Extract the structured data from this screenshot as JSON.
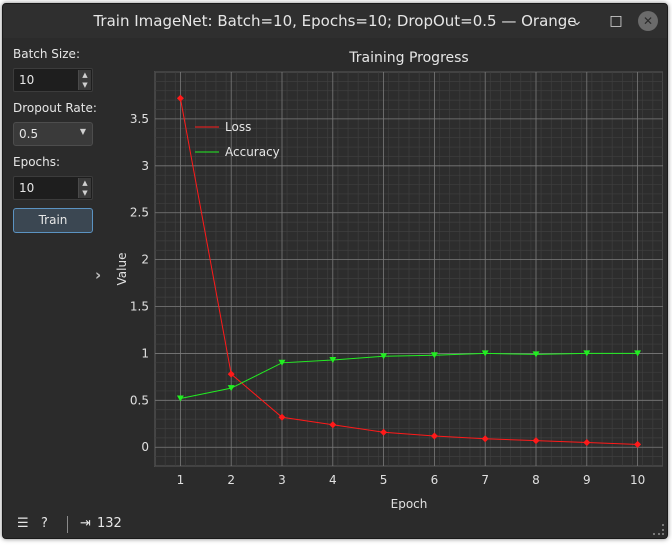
{
  "window": {
    "title": "Train ImageNet: Batch=10, Epochs=10; DropOut=0.5 — Orange"
  },
  "controls": {
    "batch_size_label": "Batch Size:",
    "batch_size_value": "10",
    "dropout_label": "Dropout Rate:",
    "dropout_value": "0.5",
    "epochs_label": "Epochs:",
    "epochs_value": "10",
    "train_button": "Train"
  },
  "statusbar": {
    "count": "132"
  },
  "icons": {
    "minimize": "minimize-icon",
    "maximize": "maximize-icon",
    "close": "close-icon",
    "menu": "hamburger-menu-icon",
    "help": "help-icon",
    "output": "output-icon",
    "toggle": "chevron-right-icon"
  },
  "colors": {
    "loss": "#ff1a1a",
    "accuracy": "#22ee22",
    "accent": "#5b93c2"
  },
  "chart_data": {
    "type": "line",
    "title": "Training Progress",
    "xlabel": "Epoch",
    "ylabel": "Value",
    "x": [
      1,
      2,
      3,
      4,
      5,
      6,
      7,
      8,
      9,
      10
    ],
    "xlim": [
      0.5,
      10.5
    ],
    "ylim": [
      -0.2,
      4.0
    ],
    "yticks": [
      0,
      0.5,
      1,
      1.5,
      2,
      2.5,
      3,
      3.5
    ],
    "xticks": [
      1,
      2,
      3,
      4,
      5,
      6,
      7,
      8,
      9,
      10
    ],
    "grid": true,
    "legend_position": "top-left",
    "series": [
      {
        "name": "Loss",
        "color": "#ff1a1a",
        "marker": "diamond",
        "values": [
          3.72,
          0.78,
          0.32,
          0.24,
          0.16,
          0.12,
          0.09,
          0.07,
          0.05,
          0.03
        ]
      },
      {
        "name": "Accuracy",
        "color": "#22ee22",
        "marker": "triangle-down",
        "values": [
          0.52,
          0.63,
          0.9,
          0.93,
          0.97,
          0.98,
          1.0,
          0.99,
          1.0,
          1.0
        ]
      }
    ]
  }
}
